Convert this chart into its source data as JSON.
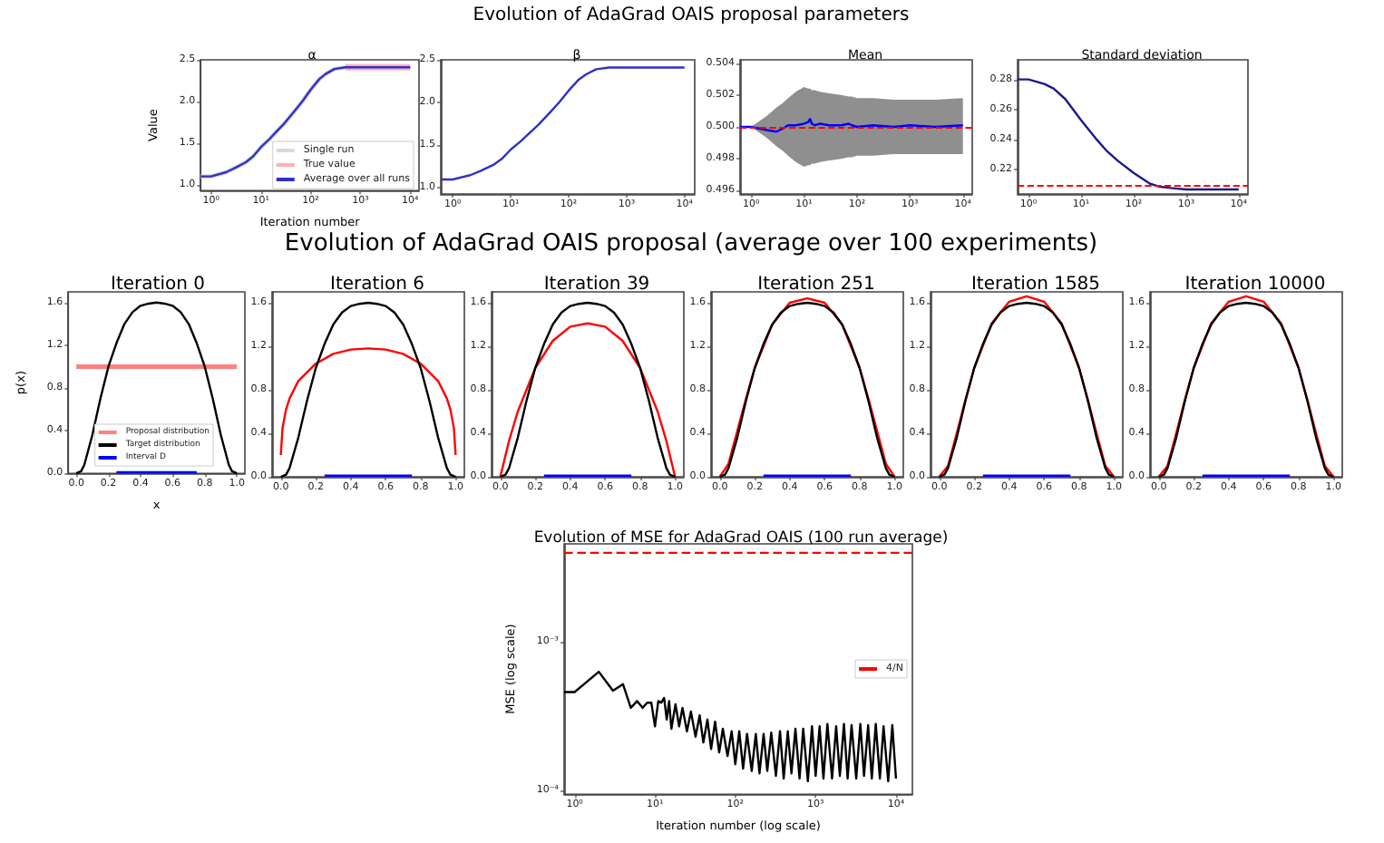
{
  "chart_data": [
    {
      "type": "line",
      "title": "α",
      "xlabel": "Iteration number",
      "ylabel": "Value",
      "annotations": [
        "Evolution of AdaGrad OAIS proposal parameters"
      ],
      "log": "x",
      "xlim": [
        0.62,
        15000
      ],
      "xticks": [
        {
          "value": 1,
          "label": "10⁰"
        },
        {
          "value": 10,
          "label": "10¹"
        },
        {
          "value": 100,
          "label": "10²"
        },
        {
          "value": 1000,
          "label": "10³"
        },
        {
          "value": 10000,
          "label": "10⁴"
        }
      ],
      "ylim": [
        0.93,
        2.5
      ],
      "yticks": [
        {
          "value": 1,
          "label": "1.0"
        },
        1.5,
        {
          "value": 2,
          "label": "2.0"
        },
        2.5
      ],
      "legend": "bottom right",
      "series": [
        {
          "name": "Single run",
          "color": "#d8d8d8",
          "x": [
            0.62,
            1,
            2,
            3,
            5,
            7,
            10,
            15,
            20,
            30,
            50,
            70,
            100,
            150,
            200,
            300,
            500,
            1000,
            3000,
            10000
          ],
          "values": [
            1.1,
            1.1,
            1.15,
            1.2,
            1.27,
            1.34,
            1.45,
            1.55,
            1.63,
            1.74,
            1.9,
            2.01,
            2.14,
            2.27,
            2.33,
            2.39,
            2.41,
            2.41,
            2.41,
            2.41
          ]
        },
        {
          "name": "True value",
          "color": "#ffb0b0",
          "x": [
            500,
            10000
          ],
          "values": [
            2.41,
            2.41
          ]
        },
        {
          "name": "Average over all runs",
          "color": "#3030c8",
          "x": [
            0.62,
            1,
            2,
            3,
            5,
            7,
            10,
            15,
            20,
            30,
            50,
            70,
            100,
            150,
            200,
            300,
            500,
            1000,
            3000,
            10000
          ],
          "values": [
            1.1,
            1.1,
            1.15,
            1.2,
            1.27,
            1.34,
            1.45,
            1.55,
            1.63,
            1.74,
            1.9,
            2.01,
            2.14,
            2.27,
            2.33,
            2.39,
            2.41,
            2.41,
            2.41,
            2.41
          ]
        }
      ]
    },
    {
      "type": "line",
      "title": "β",
      "log": "x",
      "xlim": [
        0.62,
        15000
      ],
      "xticks": [
        {
          "value": 1,
          "label": "10⁰"
        },
        {
          "value": 10,
          "label": "10¹"
        },
        {
          "value": 100,
          "label": "10²"
        },
        {
          "value": 1000,
          "label": "10³"
        },
        {
          "value": 10000,
          "label": "10⁴"
        }
      ],
      "ylim": [
        0.93,
        2.5
      ],
      "yticks": [
        {
          "value": 1,
          "label": "1.0"
        },
        1.5,
        {
          "value": 2,
          "label": "2.0"
        },
        2.5
      ],
      "series": [
        {
          "color": "#3030c8",
          "x": [
            0.62,
            1,
            2,
            3,
            5,
            7,
            10,
            15,
            20,
            30,
            50,
            70,
            100,
            150,
            200,
            300,
            500,
            1000,
            3000,
            10000
          ],
          "values": [
            1.1,
            1.1,
            1.15,
            1.2,
            1.27,
            1.34,
            1.45,
            1.55,
            1.63,
            1.74,
            1.9,
            2.01,
            2.14,
            2.27,
            2.33,
            2.39,
            2.41,
            2.41,
            2.41,
            2.41
          ]
        }
      ]
    },
    {
      "type": "line",
      "title": "Mean",
      "log": "x",
      "xlim": [
        0.62,
        15000
      ],
      "xticks": [
        {
          "value": 1,
          "label": "10⁰"
        },
        {
          "value": 10,
          "label": "10¹"
        },
        {
          "value": 100,
          "label": "10²"
        },
        {
          "value": 1000,
          "label": "10³"
        },
        {
          "value": 10000,
          "label": "10⁴"
        }
      ],
      "ylim": [
        0.4958,
        0.5042
      ],
      "yticks": [
        0.496,
        0.498,
        {
          "value": 0.5,
          "label": "0.500"
        },
        0.502,
        0.504
      ],
      "ref_lines": [
        {
          "axis": "y",
          "value": 0.5,
          "color": "#ff0000",
          "line_style": "dashed"
        }
      ],
      "series": [
        {
          "color": "#0000ff",
          "x": [
            0.62,
            1,
            2,
            3,
            4,
            5,
            7,
            10,
            12,
            13,
            14,
            16,
            20,
            30,
            50,
            70,
            80,
            100,
            200,
            500,
            1000,
            3000,
            10000
          ],
          "values": [
            0.5,
            0.5,
            0.4998,
            0.4997,
            0.4999,
            0.5001,
            0.5001,
            0.5002,
            0.5003,
            0.5005,
            0.5002,
            0.5001,
            0.5002,
            0.5001,
            0.5001,
            0.5002,
            0.5001,
            0.5,
            0.5001,
            0.5,
            0.5001,
            0.5,
            0.5001
          ],
          "lower": [
            0.5,
            0.5,
            0.4993,
            0.4988,
            0.4985,
            0.4982,
            0.4978,
            0.4975,
            0.4976,
            0.4976,
            0.4977,
            0.4977,
            0.4978,
            0.4979,
            0.498,
            0.4981,
            0.4981,
            0.4982,
            0.4982,
            0.4983,
            0.4983,
            0.4983,
            0.4983
          ],
          "upper": [
            0.5,
            0.5,
            0.5007,
            0.5012,
            0.5015,
            0.5018,
            0.5022,
            0.5025,
            0.5024,
            0.5024,
            0.5023,
            0.5023,
            0.5022,
            0.5021,
            0.502,
            0.5019,
            0.5019,
            0.5018,
            0.5018,
            0.5017,
            0.5017,
            0.5017,
            0.5018
          ]
        }
      ]
    },
    {
      "type": "line",
      "title": "Standard deviation",
      "log": "x",
      "xlim": [
        0.62,
        15000
      ],
      "xticks": [
        {
          "value": 1,
          "label": "10⁰"
        },
        {
          "value": 10,
          "label": "10¹"
        },
        {
          "value": 100,
          "label": "10²"
        },
        {
          "value": 1000,
          "label": "10³"
        },
        {
          "value": 10000,
          "label": "10⁴"
        }
      ],
      "ylim": [
        0.204,
        0.293
      ],
      "yticks": [
        0.22,
        0.24,
        0.26,
        0.28
      ],
      "ref_lines": [
        {
          "axis": "y",
          "value": 0.208,
          "color": "#ff0000",
          "line_style": "dashed"
        }
      ],
      "series": [
        {
          "color": "#1a1a8c",
          "x": [
            0.62,
            1,
            2,
            3,
            5,
            10,
            20,
            30,
            50,
            100,
            200,
            300,
            500,
            1000,
            10000
          ],
          "values": [
            0.28,
            0.28,
            0.277,
            0.274,
            0.267,
            0.253,
            0.24,
            0.233,
            0.226,
            0.218,
            0.211,
            0.209,
            0.208,
            0.207,
            0.207
          ]
        }
      ]
    },
    {
      "type": "line",
      "title": "Iteration 0",
      "xlabel": "x",
      "ylabel": "p(x)",
      "annotations": [
        "Evolution of AdaGrad OAIS proposal (average over 100 experiments)"
      ],
      "xlim": [
        -0.05,
        1.05
      ],
      "xticks": [
        {
          "value": 0,
          "label": "0.0"
        },
        0.2,
        0.4,
        0.6,
        0.8,
        {
          "value": 1,
          "label": "1.0"
        }
      ],
      "ylim": [
        0,
        1.7
      ],
      "yticks": [
        {
          "value": 0,
          "label": "0.0"
        },
        0.4,
        0.8,
        1.2,
        1.6
      ],
      "legend": "bottom",
      "series": [
        {
          "name": "Proposal distribution",
          "color": "#ff8080",
          "x": [
            0,
            1
          ],
          "values": [
            1,
            1
          ]
        },
        {
          "name": "Target distribution",
          "color": "#000000",
          "x": [
            0,
            0.03,
            0.05,
            0.1,
            0.15,
            0.2,
            0.25,
            0.3,
            0.35,
            0.4,
            0.45,
            0.5,
            0.55,
            0.6,
            0.65,
            0.7,
            0.75,
            0.8,
            0.85,
            0.9,
            0.95,
            0.97,
            1
          ],
          "values": [
            0,
            0.02,
            0.08,
            0.36,
            0.7,
            1,
            1.22,
            1.4,
            1.51,
            1.57,
            1.59,
            1.6,
            1.59,
            1.57,
            1.51,
            1.4,
            1.22,
            1,
            0.7,
            0.36,
            0.08,
            0.02,
            0
          ]
        },
        {
          "name": "Interval D",
          "color": "#0000ff",
          "x": [
            0.25,
            0.75
          ],
          "values": [
            0.01,
            0.01
          ]
        }
      ]
    },
    {
      "type": "line",
      "title": "Iteration 6",
      "xlim": [
        -0.05,
        1.05
      ],
      "xticks": [
        {
          "value": 0,
          "label": "0.0"
        },
        0.2,
        0.4,
        0.6,
        0.8,
        {
          "value": 1,
          "label": "1.0"
        }
      ],
      "ylim": [
        0,
        1.7
      ],
      "yticks": [
        {
          "value": 0,
          "label": "0.0"
        },
        0.4,
        0.8,
        1.2,
        1.6
      ],
      "series": [
        {
          "color": "#ff0000",
          "x": [
            0,
            0.01,
            0.03,
            0.05,
            0.1,
            0.2,
            0.3,
            0.4,
            0.5,
            0.6,
            0.7,
            0.8,
            0.9,
            0.95,
            0.97,
            0.99,
            1
          ],
          "values": [
            0.2,
            0.45,
            0.62,
            0.72,
            0.88,
            1.04,
            1.13,
            1.17,
            1.18,
            1.17,
            1.13,
            1.04,
            0.88,
            0.72,
            0.62,
            0.45,
            0.2
          ]
        },
        {
          "color": "#000000",
          "x": [
            0,
            0.03,
            0.05,
            0.1,
            0.15,
            0.2,
            0.25,
            0.3,
            0.35,
            0.4,
            0.45,
            0.5,
            0.55,
            0.6,
            0.65,
            0.7,
            0.75,
            0.8,
            0.85,
            0.9,
            0.95,
            0.97,
            1
          ],
          "values": [
            0,
            0.02,
            0.08,
            0.36,
            0.7,
            1,
            1.22,
            1.4,
            1.51,
            1.57,
            1.59,
            1.6,
            1.59,
            1.57,
            1.51,
            1.4,
            1.22,
            1,
            0.7,
            0.36,
            0.08,
            0.02,
            0
          ]
        },
        {
          "color": "#0000ff",
          "x": [
            0.25,
            0.75
          ],
          "values": [
            0.01,
            0.01
          ]
        }
      ]
    },
    {
      "type": "line",
      "title": "Iteration 39",
      "xlim": [
        -0.05,
        1.05
      ],
      "xticks": [
        {
          "value": 0,
          "label": "0.0"
        },
        0.2,
        0.4,
        0.6,
        0.8,
        {
          "value": 1,
          "label": "1.0"
        }
      ],
      "ylim": [
        0,
        1.7
      ],
      "yticks": [
        {
          "value": 0,
          "label": "0.0"
        },
        0.4,
        0.8,
        1.2,
        1.6
      ],
      "series": [
        {
          "color": "#ff0000",
          "x": [
            0,
            0.05,
            0.1,
            0.2,
            0.3,
            0.4,
            0.5,
            0.6,
            0.7,
            0.8,
            0.9,
            0.95,
            1
          ],
          "values": [
            0,
            0.33,
            0.6,
            1,
            1.25,
            1.38,
            1.41,
            1.38,
            1.25,
            1,
            0.6,
            0.33,
            0
          ]
        },
        {
          "color": "#000000",
          "x": [
            0,
            0.03,
            0.05,
            0.1,
            0.15,
            0.2,
            0.25,
            0.3,
            0.35,
            0.4,
            0.45,
            0.5,
            0.55,
            0.6,
            0.65,
            0.7,
            0.75,
            0.8,
            0.85,
            0.9,
            0.95,
            0.97,
            1
          ],
          "values": [
            0,
            0.02,
            0.08,
            0.36,
            0.7,
            1,
            1.22,
            1.4,
            1.51,
            1.57,
            1.59,
            1.6,
            1.59,
            1.57,
            1.51,
            1.4,
            1.22,
            1,
            0.7,
            0.36,
            0.08,
            0.02,
            0
          ]
        },
        {
          "color": "#0000ff",
          "x": [
            0.25,
            0.75
          ],
          "values": [
            0.01,
            0.01
          ]
        }
      ]
    },
    {
      "type": "line",
      "title": "Iteration 251",
      "xlim": [
        -0.05,
        1.05
      ],
      "xticks": [
        {
          "value": 0,
          "label": "0.0"
        },
        0.2,
        0.4,
        0.6,
        0.8,
        {
          "value": 1,
          "label": "1.0"
        }
      ],
      "ylim": [
        0,
        1.7
      ],
      "yticks": [
        {
          "value": 0,
          "label": "0.0"
        },
        0.4,
        0.8,
        1.2,
        1.6
      ],
      "series": [
        {
          "color": "#ff0000",
          "x": [
            0,
            0.05,
            0.1,
            0.15,
            0.2,
            0.3,
            0.4,
            0.5,
            0.6,
            0.7,
            0.8,
            0.85,
            0.9,
            0.95,
            1
          ],
          "values": [
            0,
            0.12,
            0.42,
            0.72,
            1,
            1.4,
            1.6,
            1.64,
            1.6,
            1.4,
            1,
            0.72,
            0.42,
            0.12,
            0
          ]
        },
        {
          "color": "#000000",
          "x": [
            0,
            0.03,
            0.05,
            0.1,
            0.15,
            0.2,
            0.25,
            0.3,
            0.35,
            0.4,
            0.45,
            0.5,
            0.55,
            0.6,
            0.65,
            0.7,
            0.75,
            0.8,
            0.85,
            0.9,
            0.95,
            0.97,
            1
          ],
          "values": [
            0,
            0.02,
            0.08,
            0.36,
            0.7,
            1,
            1.22,
            1.4,
            1.51,
            1.57,
            1.59,
            1.6,
            1.59,
            1.57,
            1.51,
            1.4,
            1.22,
            1,
            0.7,
            0.36,
            0.08,
            0.02,
            0
          ]
        },
        {
          "color": "#0000ff",
          "x": [
            0.25,
            0.75
          ],
          "values": [
            0.01,
            0.01
          ]
        }
      ]
    },
    {
      "type": "line",
      "title": "Iteration 1585",
      "xlim": [
        -0.05,
        1.05
      ],
      "xticks": [
        {
          "value": 0,
          "label": "0.0"
        },
        0.2,
        0.4,
        0.6,
        0.8,
        {
          "value": 1,
          "label": "1.0"
        }
      ],
      "ylim": [
        0,
        1.7
      ],
      "yticks": [
        {
          "value": 0,
          "label": "0.0"
        },
        0.4,
        0.8,
        1.2,
        1.6
      ],
      "series": [
        {
          "color": "#ff0000",
          "x": [
            0,
            0.05,
            0.1,
            0.15,
            0.2,
            0.3,
            0.4,
            0.5,
            0.6,
            0.7,
            0.8,
            0.85,
            0.9,
            0.95,
            1
          ],
          "values": [
            0,
            0.1,
            0.4,
            0.71,
            1,
            1.41,
            1.61,
            1.66,
            1.61,
            1.41,
            1,
            0.71,
            0.4,
            0.1,
            0
          ]
        },
        {
          "color": "#000000",
          "x": [
            0,
            0.03,
            0.05,
            0.1,
            0.15,
            0.2,
            0.25,
            0.3,
            0.35,
            0.4,
            0.45,
            0.5,
            0.55,
            0.6,
            0.65,
            0.7,
            0.75,
            0.8,
            0.85,
            0.9,
            0.95,
            0.97,
            1
          ],
          "values": [
            0,
            0.02,
            0.08,
            0.36,
            0.7,
            1,
            1.22,
            1.4,
            1.51,
            1.57,
            1.59,
            1.6,
            1.59,
            1.57,
            1.51,
            1.4,
            1.22,
            1,
            0.7,
            0.36,
            0.08,
            0.02,
            0
          ]
        },
        {
          "color": "#0000ff",
          "x": [
            0.25,
            0.75
          ],
          "values": [
            0.01,
            0.01
          ]
        }
      ]
    },
    {
      "type": "line",
      "title": "Iteration 10000",
      "xlim": [
        -0.05,
        1.05
      ],
      "xticks": [
        {
          "value": 0,
          "label": "0.0"
        },
        0.2,
        0.4,
        0.6,
        0.8,
        {
          "value": 1,
          "label": "1.0"
        }
      ],
      "ylim": [
        0,
        1.7
      ],
      "yticks": [
        {
          "value": 0,
          "label": "0.0"
        },
        0.4,
        0.8,
        1.2,
        1.6
      ],
      "series": [
        {
          "color": "#ff0000",
          "x": [
            0,
            0.05,
            0.1,
            0.15,
            0.2,
            0.3,
            0.4,
            0.5,
            0.6,
            0.7,
            0.8,
            0.85,
            0.9,
            0.95,
            1
          ],
          "values": [
            0,
            0.1,
            0.4,
            0.71,
            1,
            1.41,
            1.61,
            1.66,
            1.61,
            1.41,
            1,
            0.71,
            0.4,
            0.1,
            0
          ]
        },
        {
          "color": "#000000",
          "x": [
            0,
            0.03,
            0.05,
            0.1,
            0.15,
            0.2,
            0.25,
            0.3,
            0.35,
            0.4,
            0.45,
            0.5,
            0.55,
            0.6,
            0.65,
            0.7,
            0.75,
            0.8,
            0.85,
            0.9,
            0.95,
            0.97,
            1
          ],
          "values": [
            0,
            0.02,
            0.08,
            0.36,
            0.7,
            1,
            1.22,
            1.4,
            1.51,
            1.57,
            1.59,
            1.6,
            1.59,
            1.57,
            1.51,
            1.4,
            1.22,
            1,
            0.7,
            0.36,
            0.08,
            0.02,
            0
          ]
        },
        {
          "color": "#0000ff",
          "x": [
            0.25,
            0.75
          ],
          "values": [
            0.01,
            0.01
          ]
        }
      ]
    },
    {
      "type": "line",
      "title": "Evolution of MSE for AdaGrad OAIS (100 run average)",
      "xlabel": "Iteration number (log scale)",
      "ylabel": "MSE (log scale)",
      "log": "xy",
      "xlim": [
        0.74,
        16000
      ],
      "xticks": [
        {
          "value": 1,
          "label": "10⁰"
        },
        {
          "value": 10,
          "label": "10¹"
        },
        {
          "value": 100,
          "label": "10²"
        },
        {
          "value": 1000,
          "label": "10³"
        },
        {
          "value": 10000,
          "label": "10⁴"
        }
      ],
      "ylim": [
        9.4e-05,
        0.0046
      ],
      "yticks": [
        {
          "value": 0.0001,
          "label": "10⁻⁴"
        },
        {
          "value": 0.001,
          "label": "10⁻³"
        }
      ],
      "legend": "right",
      "series": [
        {
          "color": "#000000",
          "x": [
            0.74,
            1,
            2,
            3,
            4,
            5,
            6,
            7,
            8,
            9,
            10,
            11,
            12,
            13,
            14,
            15,
            16,
            18,
            20,
            22,
            25,
            28,
            32,
            36,
            40,
            45,
            50,
            56,
            63,
            70,
            80,
            90,
            100,
            112,
            125,
            140,
            160,
            180,
            200,
            225,
            250,
            280,
            320,
            360,
            400,
            450,
            500,
            560,
            630,
            700,
            800,
            900,
            1000,
            1120,
            1250,
            1400,
            1600,
            1800,
            2000,
            2250,
            2500,
            2800,
            3200,
            3600,
            4000,
            4500,
            5000,
            5600,
            6300,
            7000,
            8000,
            9000,
            10000
          ],
          "values": [
            0.00046,
            0.00046,
            0.00063,
            0.00047,
            0.00052,
            0.00036,
            0.0004,
            0.00036,
            0.00039,
            0.00039,
            0.00027,
            0.0004,
            0.00039,
            0.00042,
            0.0003,
            0.0004,
            0.00026,
            0.00038,
            0.00027,
            0.00036,
            0.00025,
            0.00034,
            0.00023,
            0.00032,
            0.00021,
            0.0003,
            0.00019,
            0.00029,
            0.00018,
            0.00026,
            0.00017,
            0.00025,
            0.00015,
            0.00025,
            0.00014,
            0.00024,
            0.000135,
            0.00024,
            0.00013,
            0.00024,
            0.000135,
            0.000245,
            0.000125,
            0.00025,
            0.00012,
            0.00025,
            0.00013,
            0.00026,
            0.00012,
            0.00026,
            0.000115,
            0.00027,
            0.000125,
            0.00027,
            0.00012,
            0.00028,
            0.00012,
            0.00027,
            0.000125,
            0.00028,
            0.00012,
            0.000275,
            0.00012,
            0.00028,
            0.000125,
            0.000275,
            0.00012,
            0.00028,
            0.00012,
            0.00027,
            0.000115,
            0.000275,
            0.00012
          ]
        },
        {
          "name": "4/N",
          "color": "#ff0000",
          "line_style": "dashed",
          "x": [
            0.74,
            16000
          ],
          "values": [
            0.004,
            0.004
          ]
        }
      ]
    }
  ]
}
